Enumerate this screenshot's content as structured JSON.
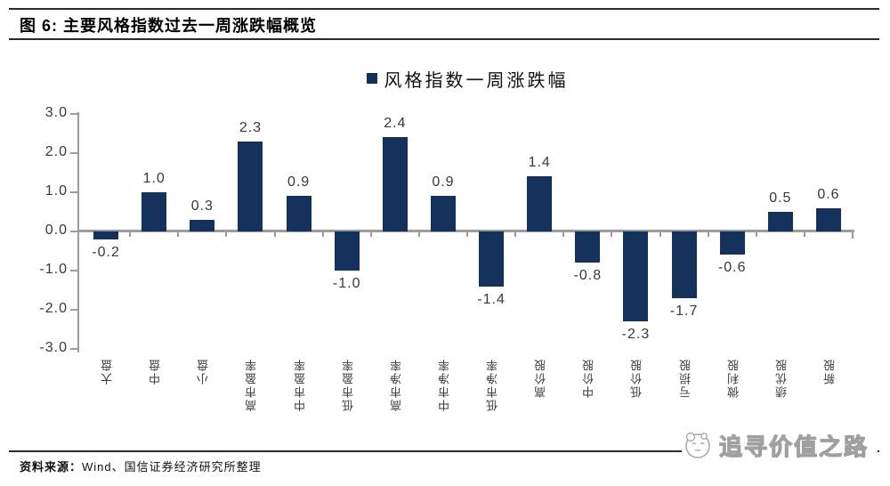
{
  "figure": {
    "title": "图 6: 主要风格指数过去一周涨跌幅概览",
    "source_label": "资料来源：",
    "source_text": "Wind、国信证券经济研究所整理",
    "watermark_text": "追寻价值之路"
  },
  "chart_data": {
    "type": "bar",
    "title": "风格指数一周涨跌幅",
    "legend": "风格指数一周涨跌幅",
    "legend_position": "top-center",
    "categories": [
      "大盘",
      "中盘",
      "小盘",
      "高市盈率",
      "中市盈率",
      "低市盈率",
      "高市净率",
      "中市净率",
      "低市净率",
      "高价股",
      "中价股",
      "低价股",
      "亏损股",
      "微利股",
      "绩优股",
      "新股"
    ],
    "values": [
      -0.2,
      1.0,
      0.3,
      2.3,
      0.9,
      -1.0,
      2.4,
      0.9,
      -1.4,
      1.4,
      -0.8,
      -2.3,
      -1.7,
      -0.6,
      0.5,
      0.6
    ],
    "ylim": [
      -3.0,
      3.0
    ],
    "yticks": [
      3.0,
      2.0,
      1.0,
      0.0,
      -1.0,
      -2.0,
      -3.0
    ],
    "xlabel": "",
    "ylabel": "",
    "grid": false,
    "data_labels": true,
    "bar_color": "#14315C",
    "axis_color": "#9C9C9C",
    "label_color": "#383838"
  }
}
